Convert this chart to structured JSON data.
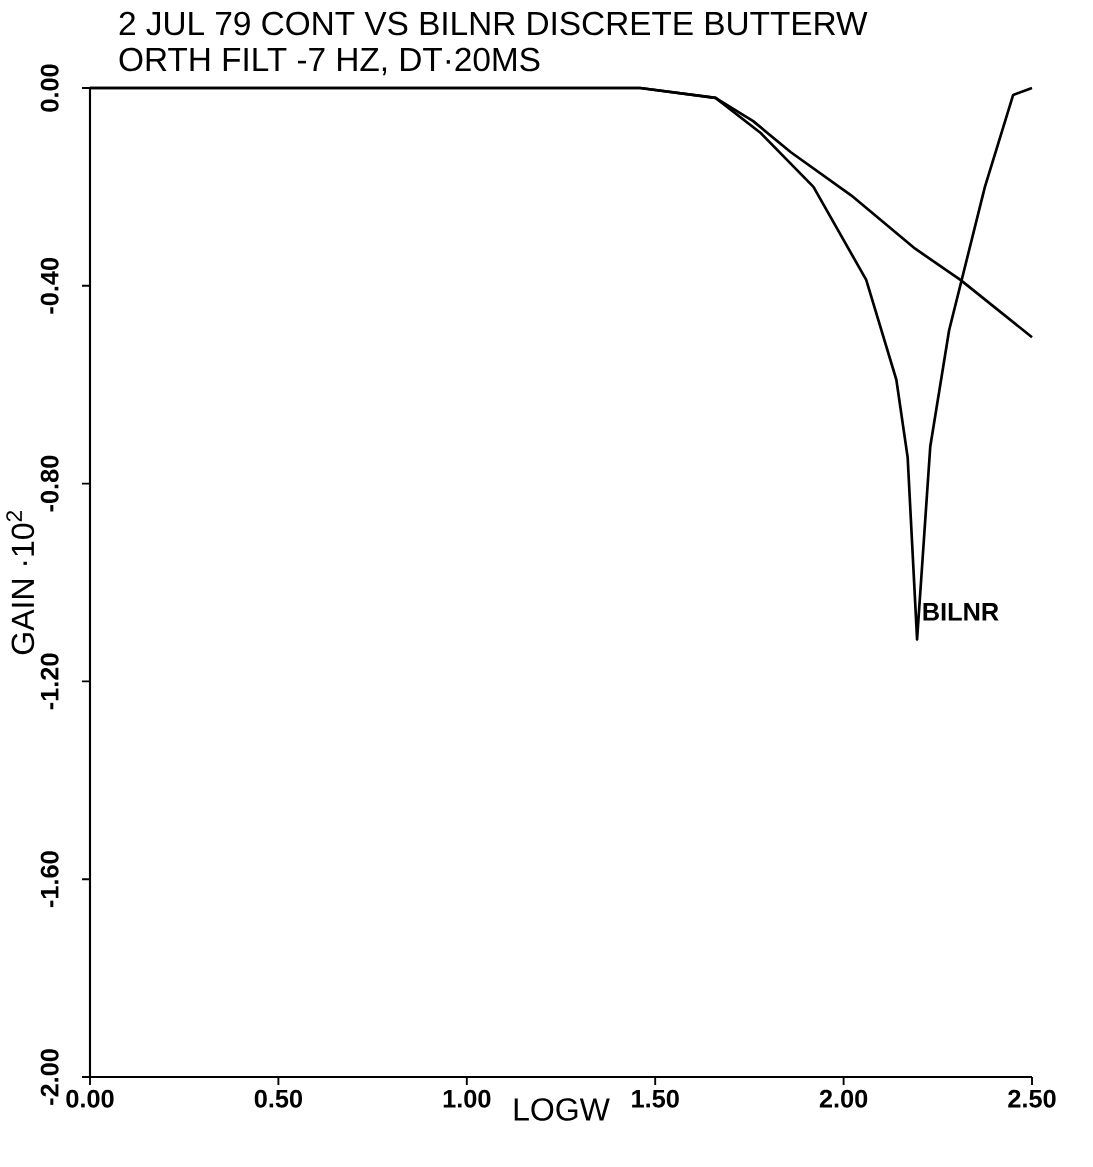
{
  "chart_data": {
    "type": "line",
    "title": "2 JUL 79  CONT VS BILNR DISCRETE BUTTERW",
    "subtitle": "ORTH FILT -7 HZ, DT·20MS",
    "xlabel": "LOGW",
    "ylabel": "GAIN  ·10$^{2}$",
    "xlim": [
      0,
      2.5
    ],
    "ylim": [
      -2,
      0
    ],
    "xticks": [
      {
        "value": 0,
        "label": "0.00"
      },
      {
        "value": 0.5,
        "label": "0.50"
      },
      {
        "value": 1,
        "label": "1.00"
      },
      {
        "value": 1.5,
        "label": "1.50"
      },
      {
        "value": 2,
        "label": "2.00"
      },
      {
        "value": 2.5,
        "label": "2.50"
      }
    ],
    "yticks": [
      {
        "value": -2,
        "label": "-2.00"
      },
      {
        "value": -1.6,
        "label": "-1.60"
      },
      {
        "value": -1.2,
        "label": "-1.20"
      },
      {
        "value": -0.8,
        "label": "-0.80"
      },
      {
        "value": -0.4,
        "label": "-0.40"
      },
      {
        "value": 0,
        "label": "0.00"
      }
    ],
    "grid": false,
    "series": [
      {
        "color": "#000000",
        "x": [
          0,
          1.46,
          1.66,
          1.76,
          1.86,
          2.02,
          2.19,
          2.31,
          2.5
        ],
        "values": [
          0,
          0,
          -0.02,
          -0.067,
          -0.13,
          -0.217,
          -0.325,
          -0.388,
          -0.504
        ]
      },
      {
        "name": "BILNR",
        "color": "#000000",
        "x": [
          0,
          1.46,
          1.66,
          1.78,
          1.92,
          2.06,
          2.14,
          2.17,
          2.195,
          2.23,
          2.28,
          2.375,
          2.45,
          2.5
        ],
        "values": [
          0,
          0,
          -0.02,
          -0.091,
          -0.2,
          -0.388,
          -0.59,
          -0.747,
          -1.115,
          -0.725,
          -0.49,
          -0.2,
          -0.014,
          0
        ]
      }
    ]
  }
}
